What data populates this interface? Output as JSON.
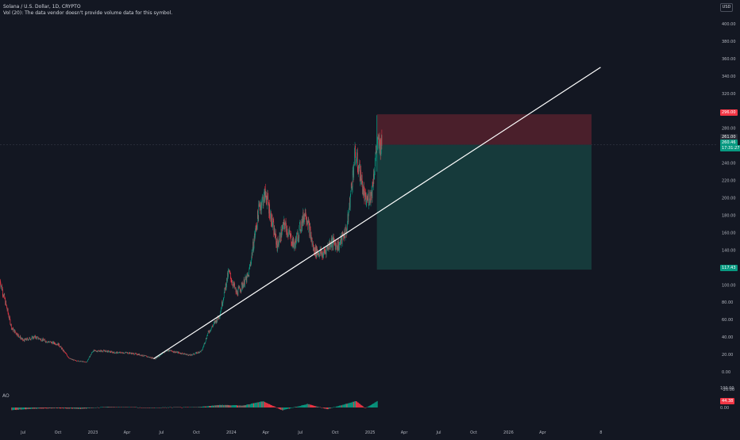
{
  "header": {
    "symbol_title": "Solana / U.S. Dollar, 1D, CRYPTO",
    "volume_note": "Vol (20): The data vendor doesn't provide volume data for this symbol."
  },
  "currency_label": "USD",
  "price_axis": {
    "ticks": [
      "400.00",
      "380.00",
      "360.00",
      "340.00",
      "320.00",
      "300.00",
      "280.00",
      "240.00",
      "220.00",
      "200.00",
      "180.00",
      "160.00",
      "140.00",
      "120.00",
      "100.00",
      "80.00",
      "60.00",
      "40.00",
      "20.00",
      "0.00",
      "-20.00"
    ]
  },
  "price_labels": {
    "stop_loss": "296.00",
    "entry": "261.00",
    "last_price": "260.46",
    "countdown": "17:31:27",
    "take_profit": "117.43"
  },
  "ao": {
    "label": "AO",
    "axis_top": "100.00",
    "value": "44.38",
    "zero": "0.00"
  },
  "time_axis": {
    "labels": [
      "Jul",
      "Oct",
      "2023",
      "Apr",
      "Jul",
      "Oct",
      "2024",
      "Apr",
      "Jul",
      "Oct",
      "2025",
      "Apr",
      "Jul",
      "Oct",
      "2026",
      "Apr",
      "8"
    ]
  },
  "colors": {
    "background": "#131722",
    "candle_up": "#089981",
    "candle_down": "#f23645",
    "trend_line": "#ffffff",
    "stop_zone": "#4a1f2b",
    "profit_zone": "#163a3b",
    "entry_badge": "#2a2e39",
    "price_badge": "#089981",
    "stop_badge": "#f23645"
  },
  "chart_data": {
    "type": "candlestick",
    "title": "Solana / U.S. Dollar, 1D, CRYPTO",
    "y_range": [
      -20,
      410
    ],
    "x_range": [
      "2022-05-01",
      "2026-08-08"
    ],
    "grid": false,
    "close_series": {
      "dates": [
        "2022-05-01",
        "2022-06-01",
        "2022-07-01",
        "2022-08-01",
        "2022-09-01",
        "2022-10-01",
        "2022-11-01",
        "2022-11-15",
        "2022-12-15",
        "2023-01-01",
        "2023-02-01",
        "2023-03-01",
        "2023-04-01",
        "2023-05-01",
        "2023-06-15",
        "2023-07-15",
        "2023-08-15",
        "2023-09-15",
        "2023-10-15",
        "2023-11-01",
        "2023-12-01",
        "2023-12-25",
        "2024-01-15",
        "2024-02-15",
        "2024-03-15",
        "2024-04-01",
        "2024-05-01",
        "2024-05-20",
        "2024-06-15",
        "2024-07-15",
        "2024-08-05",
        "2024-08-30",
        "2024-09-20",
        "2024-10-10",
        "2024-11-01",
        "2024-11-22",
        "2024-12-05",
        "2024-12-20",
        "2025-01-05",
        "2025-01-19",
        "2025-02-01"
      ],
      "values": [
        105,
        50,
        36,
        40,
        35,
        32,
        15,
        13,
        11,
        24,
        24,
        22,
        22,
        20,
        15,
        25,
        22,
        19,
        24,
        45,
        65,
        115,
        90,
        110,
        190,
        205,
        145,
        170,
        145,
        185,
        140,
        135,
        150,
        145,
        165,
        250,
        230,
        195,
        205,
        261,
        260
      ]
    },
    "ao_histogram": {
      "dates": [
        "2022-06-01",
        "2022-08-01",
        "2022-10-01",
        "2022-12-01",
        "2023-02-01",
        "2023-04-01",
        "2023-06-01",
        "2023-08-01",
        "2023-10-01",
        "2023-12-01",
        "2024-02-01",
        "2024-03-25",
        "2024-05-15",
        "2024-07-20",
        "2024-09-10",
        "2024-11-25",
        "2024-12-20",
        "2025-01-20"
      ],
      "values": [
        -18,
        -8,
        -5,
        -10,
        4,
        2,
        -3,
        1,
        2,
        18,
        14,
        44,
        -20,
        25,
        -12,
        45,
        -5,
        44.38
      ]
    },
    "trend_line": {
      "start": {
        "date": "2023-06-10",
        "price": 15
      },
      "end": {
        "date": "2026-09-01",
        "price": 350
      }
    },
    "position": {
      "type": "short",
      "start_date": "2025-01-19",
      "end_date": "2026-08-08",
      "entry": 261.0,
      "stop_loss": 296.0,
      "take_profit": 117.43
    }
  }
}
